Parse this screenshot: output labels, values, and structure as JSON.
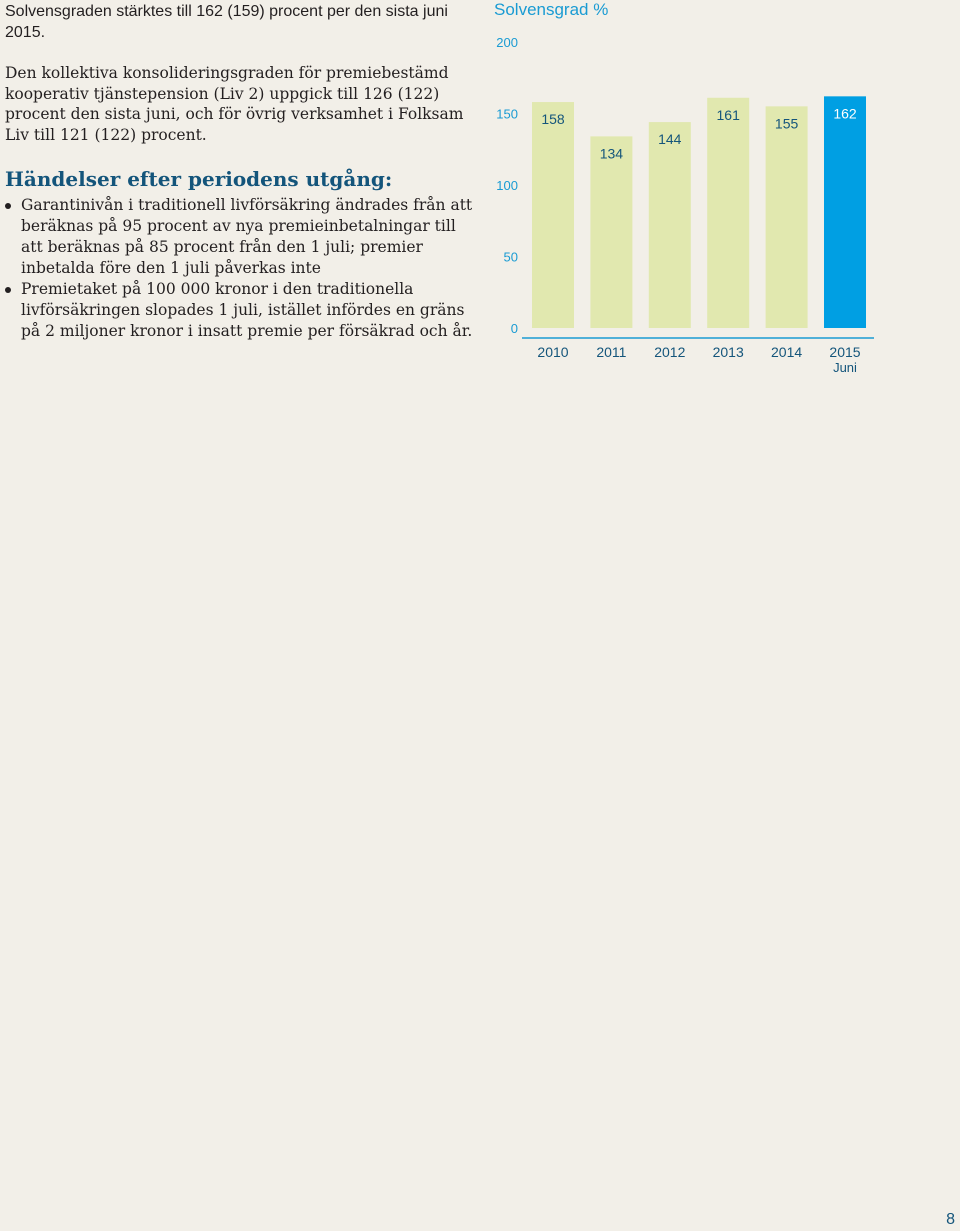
{
  "text": {
    "para1": "Solvensgraden stärktes till 162 (159) procent per den sista juni 2015.",
    "para2": "Den kollektiva konsolideringsgraden för premiebestämd kooperativ tjänstepension (Liv 2) uppgick till 126 (122) procent den sista juni, och för övrig verksamhet i Folksam Liv till 121 (122) procent.",
    "heading": "Händelser efter periodens utgång:",
    "bullets": [
      "Garantinivån i traditionell livförsäkring ändrades från att beräknas på 95 procent av nya premieinbetalningar till att beräknas på 85 procent från den 1 juli; premier inbetalda före den 1 juli påverkas inte",
      "Premietaket på 100 000 kronor i den traditionella livförsäkringen slopades 1 juli, istället infördes en gräns på 2 miljoner kronor i insatt premie per försäkrad och år."
    ]
  },
  "chart_data": {
    "type": "bar",
    "title": "Solvensgrad %",
    "categories": [
      "2010",
      "2011",
      "2012",
      "2013",
      "2014",
      "2015"
    ],
    "category_sublabels": [
      "",
      "",
      "",
      "",
      "",
      "Juni"
    ],
    "values": [
      158,
      134,
      144,
      161,
      155,
      162
    ],
    "data_labels": [
      "158",
      "134",
      "144",
      "161",
      "155",
      "162"
    ],
    "yticks": [
      "200",
      "150",
      "100",
      "50",
      "0"
    ],
    "ylim": [
      0,
      200
    ],
    "colors": {
      "bar": "#e1e8af",
      "highlight_bar": "#009fe3",
      "tick": "#1a9bd3",
      "label_dark": "#14557b",
      "label_light": "#ffffff",
      "axis": "#1a9bd3"
    }
  },
  "page": {
    "number": "8"
  }
}
